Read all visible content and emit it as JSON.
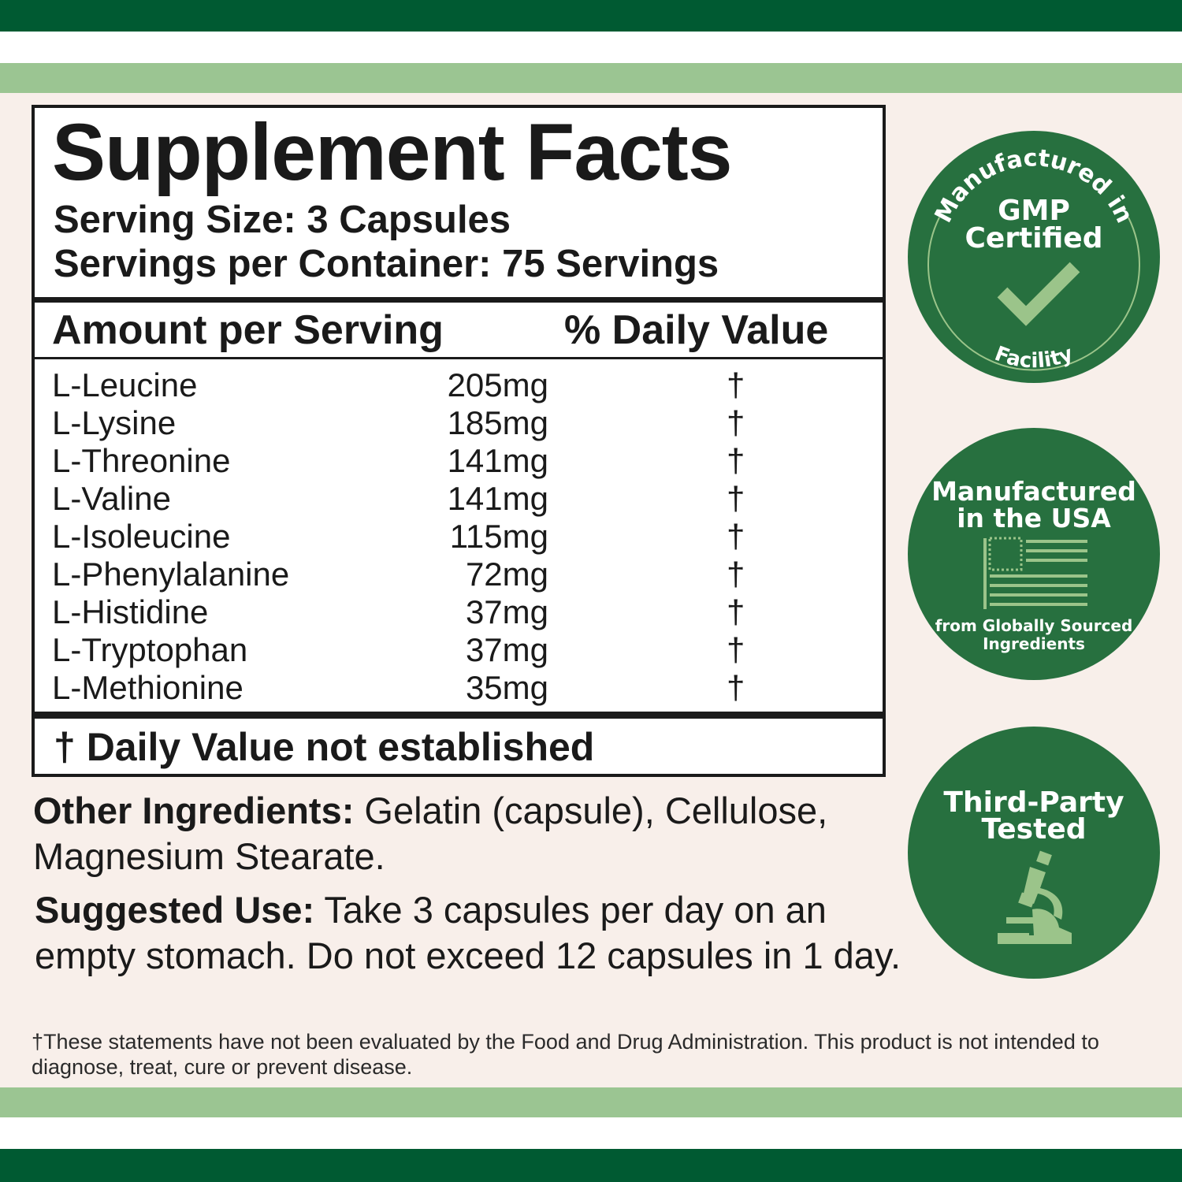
{
  "colors": {
    "dark_green": "#005a32",
    "light_green": "#9bc592",
    "background": "#f8efea",
    "badge_green": "#27703f",
    "icon_green": "#9bc48a"
  },
  "facts": {
    "title": "Supplement Facts",
    "serving_size": "Serving Size: 3 Capsules",
    "servings_per_container": "Servings per Container: 75 Servings",
    "amount_header": "Amount per Serving",
    "dv_header": "% Daily Value",
    "rows": [
      {
        "name": "L-Leucine",
        "amount": "205mg",
        "dv": "†"
      },
      {
        "name": "L-Lysine",
        "amount": "185mg",
        "dv": "†"
      },
      {
        "name": "L-Threonine",
        "amount": "141mg",
        "dv": "†"
      },
      {
        "name": "L-Valine",
        "amount": "141mg",
        "dv": "†"
      },
      {
        "name": "L-Isoleucine",
        "amount": "115mg",
        "dv": "†"
      },
      {
        "name": "L-Phenylalanine",
        "amount": "72mg",
        "dv": "†"
      },
      {
        "name": "L-Histidine",
        "amount": "37mg",
        "dv": "†"
      },
      {
        "name": "L-Tryptophan",
        "amount": "37mg",
        "dv": "†"
      },
      {
        "name": "L-Methionine",
        "amount": "35mg",
        "dv": "†"
      }
    ],
    "footnote": "† Daily Value not established"
  },
  "other_ingredients": {
    "label": "Other Ingredients:",
    "text": " Gelatin (capsule), Cellulose, Magnesium  Stearate."
  },
  "suggested_use": {
    "label": "Suggested Use:",
    "text": " Take 3 capsules per day on an empty stomach. Do not exceed 12 capsules in 1 day."
  },
  "disclaimer": "†These statements have not been evaluated by the Food and Drug Administration. This product is not intended to diagnose, treat, cure or prevent disease.",
  "badges": {
    "gmp": {
      "top_arc": "Manufactured in",
      "line1": "GMP",
      "line2": "Certified",
      "bottom_arc": "Facility",
      "icon": "checkmark-icon"
    },
    "usa": {
      "line1": "Manufactured",
      "line2": "in the USA",
      "sub1": "from Globally Sourced",
      "sub2": "Ingredients",
      "icon": "us-flag-icon"
    },
    "tested": {
      "line1": "Third-Party",
      "line2": "Tested",
      "icon": "microscope-icon"
    }
  }
}
